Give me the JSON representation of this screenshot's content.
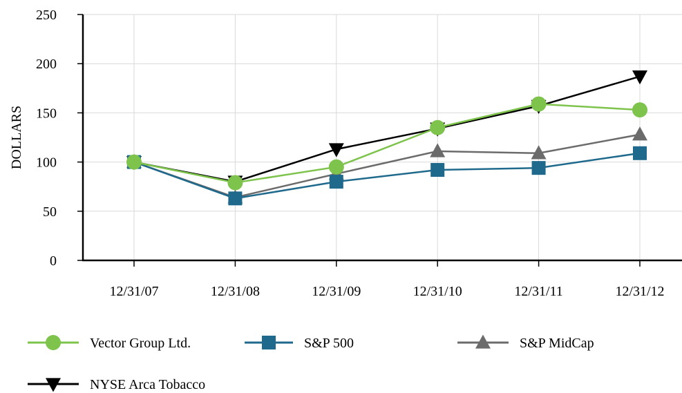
{
  "chart_data": {
    "type": "line",
    "ylabel": "DOLLARS",
    "xlabel": "",
    "categories": [
      "12/31/07",
      "12/31/08",
      "12/31/09",
      "12/31/10",
      "12/31/11",
      "12/31/12"
    ],
    "ylim": [
      0,
      250
    ],
    "yticks": [
      0,
      50,
      100,
      150,
      200,
      250
    ],
    "grid": true,
    "legend_position": "bottom",
    "series": [
      {
        "name": "Vector Group Ltd.",
        "color": "#7dc34c",
        "line_color": "#7dc34c",
        "marker": "circle",
        "values": [
          100,
          79,
          95,
          135,
          159,
          153
        ]
      },
      {
        "name": "S&P 500",
        "color": "#1f6a8c",
        "line_color": "#1f6a8c",
        "marker": "square",
        "values": [
          100,
          63,
          80,
          92,
          94,
          109
        ]
      },
      {
        "name": "S&P MidCap",
        "color": "#6b6b6b",
        "line_color": "#6b6b6b",
        "marker": "triangle-up",
        "values": [
          100,
          64,
          88,
          111,
          109,
          128
        ]
      },
      {
        "name": "NYSE Arca Tobacco",
        "color": "#000000",
        "line_color": "#000000",
        "marker": "triangle-down",
        "values": [
          100,
          80,
          113,
          134,
          157,
          187
        ]
      }
    ]
  }
}
